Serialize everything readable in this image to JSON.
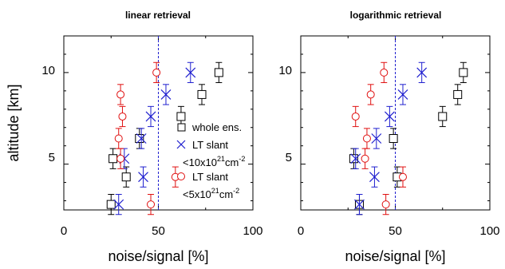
{
  "colors": {
    "whole": "#000000",
    "lt10": "#1f1fcf",
    "lt5": "#e01010",
    "ref": "#1f1fcf"
  },
  "legend": {
    "placement": "lower-right of left panel",
    "whole": "whole ens.",
    "lt10_line1": "LT slant",
    "lt10_line2_pre": "<10x10",
    "lt10_line2_sup": "21",
    "lt10_line2_post": "cm",
    "lt10_line2_sup2": "-2",
    "lt5_line1": "LT slant",
    "lt5_line2_pre": "<5x10",
    "lt5_line2_sup": "21",
    "lt5_line2_post": "cm",
    "lt5_line2_sup2": "-2"
  },
  "chart_data": [
    {
      "type": "scatter",
      "title": "linear retrieval",
      "xlabel": "noise/signal [%]",
      "ylabel": "altitude [km]",
      "xlim": [
        0,
        100
      ],
      "ylim": [
        2.5,
        12
      ],
      "xticks": [
        0,
        50,
        100
      ],
      "yticks": [
        5,
        10
      ],
      "grid": false,
      "reference_line_x": 50,
      "series": [
        {
          "name": "whole ens.",
          "marker": "square",
          "color": "#000000",
          "points": [
            {
              "x": 25,
              "y": 2.8,
              "e": 2.5
            },
            {
              "x": 26,
              "y": 5.3,
              "e": 3
            },
            {
              "x": 33,
              "y": 4.3,
              "e": 3
            },
            {
              "x": 40,
              "y": 6.4,
              "e": 3
            },
            {
              "x": 62,
              "y": 7.6,
              "e": 3
            },
            {
              "x": 73,
              "y": 8.8,
              "e": 3
            },
            {
              "x": 82,
              "y": 10,
              "e": 3
            }
          ]
        },
        {
          "name": "LT slant <10x10^21cm^-2",
          "marker": "x",
          "color": "#1f1fcf",
          "points": [
            {
              "x": 29,
              "y": 2.8,
              "e": 3
            },
            {
              "x": 32,
              "y": 5.3,
              "e": 3.5
            },
            {
              "x": 42,
              "y": 4.3,
              "e": 4
            },
            {
              "x": 41,
              "y": 6.4,
              "e": 3.5
            },
            {
              "x": 46,
              "y": 7.6,
              "e": 4
            },
            {
              "x": 54,
              "y": 8.8,
              "e": 4.5
            },
            {
              "x": 67,
              "y": 10,
              "e": 4.5
            }
          ]
        },
        {
          "name": "LT slant <5x10^21cm^-2",
          "marker": "circle",
          "color": "#e01010",
          "points": [
            {
              "x": 46,
              "y": 2.8,
              "e": 2.5
            },
            {
              "x": 30,
              "y": 5.3,
              "e": 2.5
            },
            {
              "x": 59,
              "y": 4.3,
              "e": 3
            },
            {
              "x": 29,
              "y": 6.4,
              "e": 2.5
            },
            {
              "x": 31,
              "y": 7.6,
              "e": 3
            },
            {
              "x": 30,
              "y": 8.8,
              "e": 3
            },
            {
              "x": 49,
              "y": 10,
              "e": 3
            }
          ]
        }
      ]
    },
    {
      "type": "scatter",
      "title": "logarithmic retrieval",
      "xlabel": "noise/signal [%]",
      "ylabel": "",
      "xlim": [
        0,
        100
      ],
      "ylim": [
        2.5,
        12
      ],
      "xticks": [
        0,
        50,
        100
      ],
      "yticks": [
        5,
        10
      ],
      "grid": false,
      "reference_line_x": 50,
      "series": [
        {
          "name": "whole ens.",
          "marker": "square",
          "color": "#000000",
          "points": [
            {
              "x": 31,
              "y": 2.8,
              "e": 2
            },
            {
              "x": 28,
              "y": 5.3,
              "e": 2.5
            },
            {
              "x": 51,
              "y": 4.3,
              "e": 3
            },
            {
              "x": 49,
              "y": 6.4,
              "e": 3
            },
            {
              "x": 75,
              "y": 7.6,
              "e": 3
            },
            {
              "x": 83,
              "y": 8.8,
              "e": 3
            },
            {
              "x": 86,
              "y": 10,
              "e": 3
            }
          ]
        },
        {
          "name": "LT slant <10x10^21cm^-2",
          "marker": "x",
          "color": "#1f1fcf",
          "points": [
            {
              "x": 31,
              "y": 2.8,
              "e": 2.5
            },
            {
              "x": 29,
              "y": 5.3,
              "e": 2.5
            },
            {
              "x": 39,
              "y": 4.3,
              "e": 3.5
            },
            {
              "x": 40,
              "y": 6.4,
              "e": 3.5
            },
            {
              "x": 47,
              "y": 7.6,
              "e": 4
            },
            {
              "x": 54,
              "y": 8.8,
              "e": 4.5
            },
            {
              "x": 64,
              "y": 10,
              "e": 4.5
            }
          ]
        },
        {
          "name": "LT slant <5x10^21cm^-2",
          "marker": "circle",
          "color": "#e01010",
          "points": [
            {
              "x": 45,
              "y": 2.8,
              "e": 2.5
            },
            {
              "x": 34,
              "y": 5.3,
              "e": 2.5
            },
            {
              "x": 54,
              "y": 4.3,
              "e": 3
            },
            {
              "x": 35,
              "y": 6.4,
              "e": 3
            },
            {
              "x": 29,
              "y": 7.6,
              "e": 3
            },
            {
              "x": 37,
              "y": 8.8,
              "e": 3
            },
            {
              "x": 44,
              "y": 10,
              "e": 3
            }
          ]
        }
      ]
    }
  ]
}
